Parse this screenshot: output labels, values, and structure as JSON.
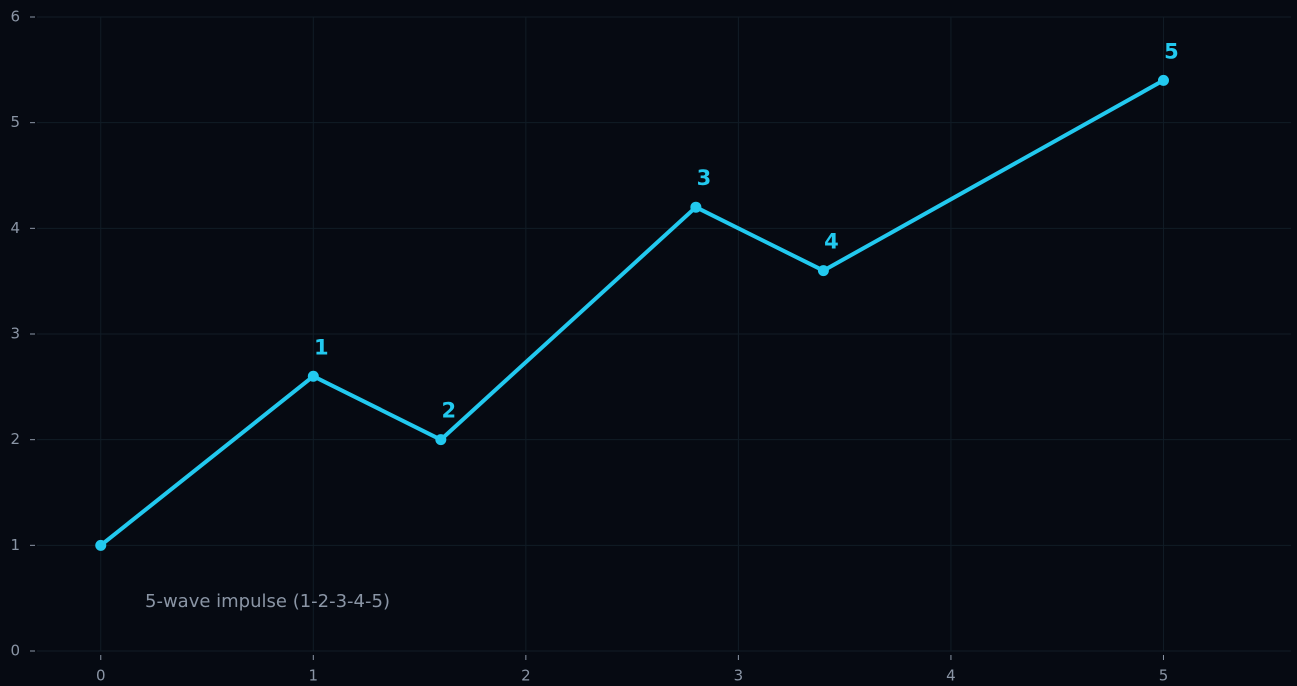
{
  "chart_data": {
    "type": "line",
    "x": [
      0,
      1,
      1.6,
      2.8,
      3.4,
      5
    ],
    "series": [
      {
        "color": "#22c9ef",
        "values": [
          1,
          2.6,
          2.0,
          4.2,
          3.6,
          5.4
        ]
      }
    ],
    "annotations": [
      "1",
      "2",
      "3",
      "4",
      "5"
    ],
    "note": "5-wave impulse (1-2-3-4-5)",
    "xlim": [
      -0.3,
      5.6
    ],
    "xticks": [
      0,
      1,
      2,
      3,
      4,
      5
    ],
    "ylim": [
      0,
      6
    ],
    "yticks": [
      0,
      1,
      2,
      3,
      4,
      5,
      6
    ],
    "grid": true
  }
}
